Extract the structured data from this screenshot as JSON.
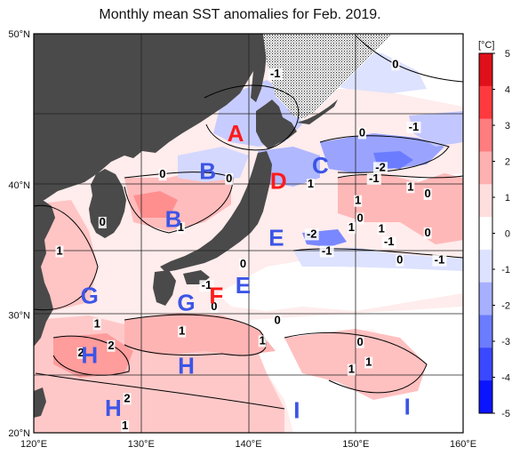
{
  "title": "Monthly mean SST anomalies for Feb. 2019.",
  "map": {
    "lon_range": [
      120,
      160
    ],
    "lat_range": [
      20,
      50
    ],
    "lon_ticks": [
      "120°E",
      "130°E",
      "140°E",
      "150°E",
      "160°E"
    ],
    "lat_ticks": [
      "50°N",
      "40°N",
      "30°N",
      "20°N"
    ]
  },
  "colorbar": {
    "unit": "[°C]",
    "ticks": [
      "5",
      "4",
      "3",
      "2",
      "1",
      "0",
      "-1",
      "-2",
      "-3",
      "-4",
      "-5"
    ],
    "colors": [
      "#e0101a",
      "#ff3a3f",
      "#ff7c7f",
      "#ffb0b0",
      "#ffdede",
      "#ffffff",
      "#dde2ff",
      "#a6b0ff",
      "#6c7cff",
      "#3a48ff",
      "#0c14ff"
    ]
  },
  "regions": [
    {
      "label": "A",
      "color": "red",
      "lon": 138.8,
      "lat": 43.6
    },
    {
      "label": "B",
      "color": "blue",
      "lon": 136.2,
      "lat": 41.0
    },
    {
      "label": "B",
      "color": "blue",
      "lon": 133.0,
      "lat": 37.5
    },
    {
      "label": "C",
      "color": "blue",
      "lon": 146.7,
      "lat": 41.4
    },
    {
      "label": "D",
      "color": "red",
      "lon": 142.8,
      "lat": 40.3
    },
    {
      "label": "E",
      "color": "blue",
      "lon": 142.6,
      "lat": 36.1
    },
    {
      "label": "E",
      "color": "blue",
      "lon": 139.5,
      "lat": 32.4
    },
    {
      "label": "F",
      "color": "red",
      "lon": 137.0,
      "lat": 31.6
    },
    {
      "label": "G",
      "color": "blue",
      "lon": 125.2,
      "lat": 31.6
    },
    {
      "label": "G",
      "color": "blue",
      "lon": 134.2,
      "lat": 31.0
    },
    {
      "label": "H",
      "color": "blue",
      "lon": 125.2,
      "lat": 26.7
    },
    {
      "label": "H",
      "color": "blue",
      "lon": 134.2,
      "lat": 25.8
    },
    {
      "label": "H",
      "color": "blue",
      "lon": 127.4,
      "lat": 22.2
    },
    {
      "label": "I",
      "color": "blue",
      "lon": 144.5,
      "lat": 22.0
    },
    {
      "label": "I",
      "color": "blue",
      "lon": 154.8,
      "lat": 22.3
    }
  ],
  "contour_labels": [
    {
      "text": "-1",
      "lon": 142.5,
      "lat": 47.3
    },
    {
      "text": "0",
      "lon": 153.7,
      "lat": 47.9
    },
    {
      "text": "0",
      "lon": 150.6,
      "lat": 43.4
    },
    {
      "text": "-1",
      "lon": 155.4,
      "lat": 43.8
    },
    {
      "text": "0",
      "lon": 132.0,
      "lat": 40.5
    },
    {
      "text": "0",
      "lon": 138.2,
      "lat": 40.2
    },
    {
      "text": "1",
      "lon": 145.8,
      "lat": 39.8
    },
    {
      "text": "-2",
      "lon": 152.3,
      "lat": 41.0
    },
    {
      "text": "-1",
      "lon": 151.7,
      "lat": 40.2
    },
    {
      "text": "1",
      "lon": 155.1,
      "lat": 39.6
    },
    {
      "text": "0",
      "lon": 156.7,
      "lat": 39.1
    },
    {
      "text": "1",
      "lon": 150.2,
      "lat": 38.6
    },
    {
      "text": "0",
      "lon": 150.4,
      "lat": 37.3
    },
    {
      "text": "1",
      "lon": 149.6,
      "lat": 36.6
    },
    {
      "text": "0",
      "lon": 126.4,
      "lat": 37.0
    },
    {
      "text": "1",
      "lon": 133.7,
      "lat": 36.6
    },
    {
      "text": "-2",
      "lon": 145.9,
      "lat": 36.1
    },
    {
      "text": "1",
      "lon": 152.4,
      "lat": 36.5
    },
    {
      "text": "-1",
      "lon": 153.1,
      "lat": 35.5
    },
    {
      "text": "0",
      "lon": 156.7,
      "lat": 36.2
    },
    {
      "text": "1",
      "lon": 122.4,
      "lat": 34.8
    },
    {
      "text": "-1",
      "lon": 147.3,
      "lat": 34.8
    },
    {
      "text": "0",
      "lon": 139.5,
      "lat": 33.8
    },
    {
      "text": "0",
      "lon": 154.1,
      "lat": 34.1
    },
    {
      "text": "-1",
      "lon": 157.8,
      "lat": 34.1
    },
    {
      "text": "-1",
      "lon": 136.1,
      "lat": 32.1
    },
    {
      "text": "0",
      "lon": 136.8,
      "lat": 30.4
    },
    {
      "text": "1",
      "lon": 125.9,
      "lat": 29.0
    },
    {
      "text": "0",
      "lon": 142.7,
      "lat": 29.3
    },
    {
      "text": "1",
      "lon": 133.8,
      "lat": 28.4
    },
    {
      "text": "2",
      "lon": 127.2,
      "lat": 27.2
    },
    {
      "text": "2",
      "lon": 124.4,
      "lat": 26.6
    },
    {
      "text": "1",
      "lon": 141.3,
      "lat": 27.6
    },
    {
      "text": "0",
      "lon": 150.4,
      "lat": 27.5
    },
    {
      "text": "1",
      "lon": 151.2,
      "lat": 25.8
    },
    {
      "text": "1",
      "lon": 149.6,
      "lat": 25.2
    },
    {
      "text": "2",
      "lon": 128.7,
      "lat": 22.7
    },
    {
      "text": "1",
      "lon": 128.5,
      "lat": 20.3
    }
  ]
}
